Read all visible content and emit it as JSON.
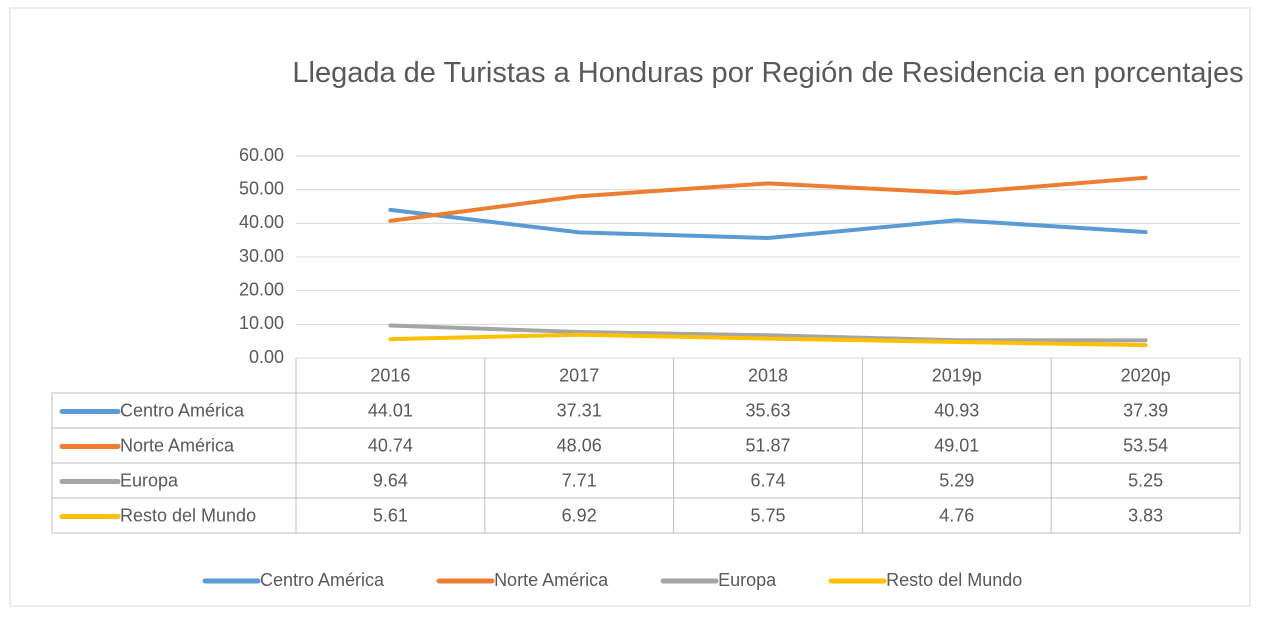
{
  "chart_data": {
    "type": "line",
    "title": "Llegada de Turistas a Honduras por Región de Residencia en porcentajes",
    "categories": [
      "2016",
      "2017",
      "2018",
      "2019p",
      "2020p"
    ],
    "series": [
      {
        "name": "Centro América",
        "color": "#5b9bd5",
        "values": [
          44.01,
          37.31,
          35.63,
          40.93,
          37.39
        ]
      },
      {
        "name": "Norte América",
        "color": "#ed7d31",
        "values": [
          40.74,
          48.06,
          51.87,
          49.01,
          53.54
        ]
      },
      {
        "name": "Europa",
        "color": "#a5a5a5",
        "values": [
          9.64,
          7.71,
          6.74,
          5.29,
          5.25
        ]
      },
      {
        "name": "Resto del Mundo",
        "color": "#ffc000",
        "values": [
          5.61,
          6.92,
          5.75,
          4.76,
          3.83
        ]
      }
    ],
    "ylim": [
      0,
      60
    ],
    "yticks": [
      {
        "value": 0,
        "label": "0.00"
      },
      {
        "value": 10,
        "label": "10.00"
      },
      {
        "value": 20,
        "label": "20.00"
      },
      {
        "value": 30,
        "label": "30.00"
      },
      {
        "value": 40,
        "label": "40.00"
      },
      {
        "value": 50,
        "label": "50.00"
      },
      {
        "value": 60,
        "label": "60.00"
      }
    ],
    "grid": true,
    "legend": "bottom"
  }
}
